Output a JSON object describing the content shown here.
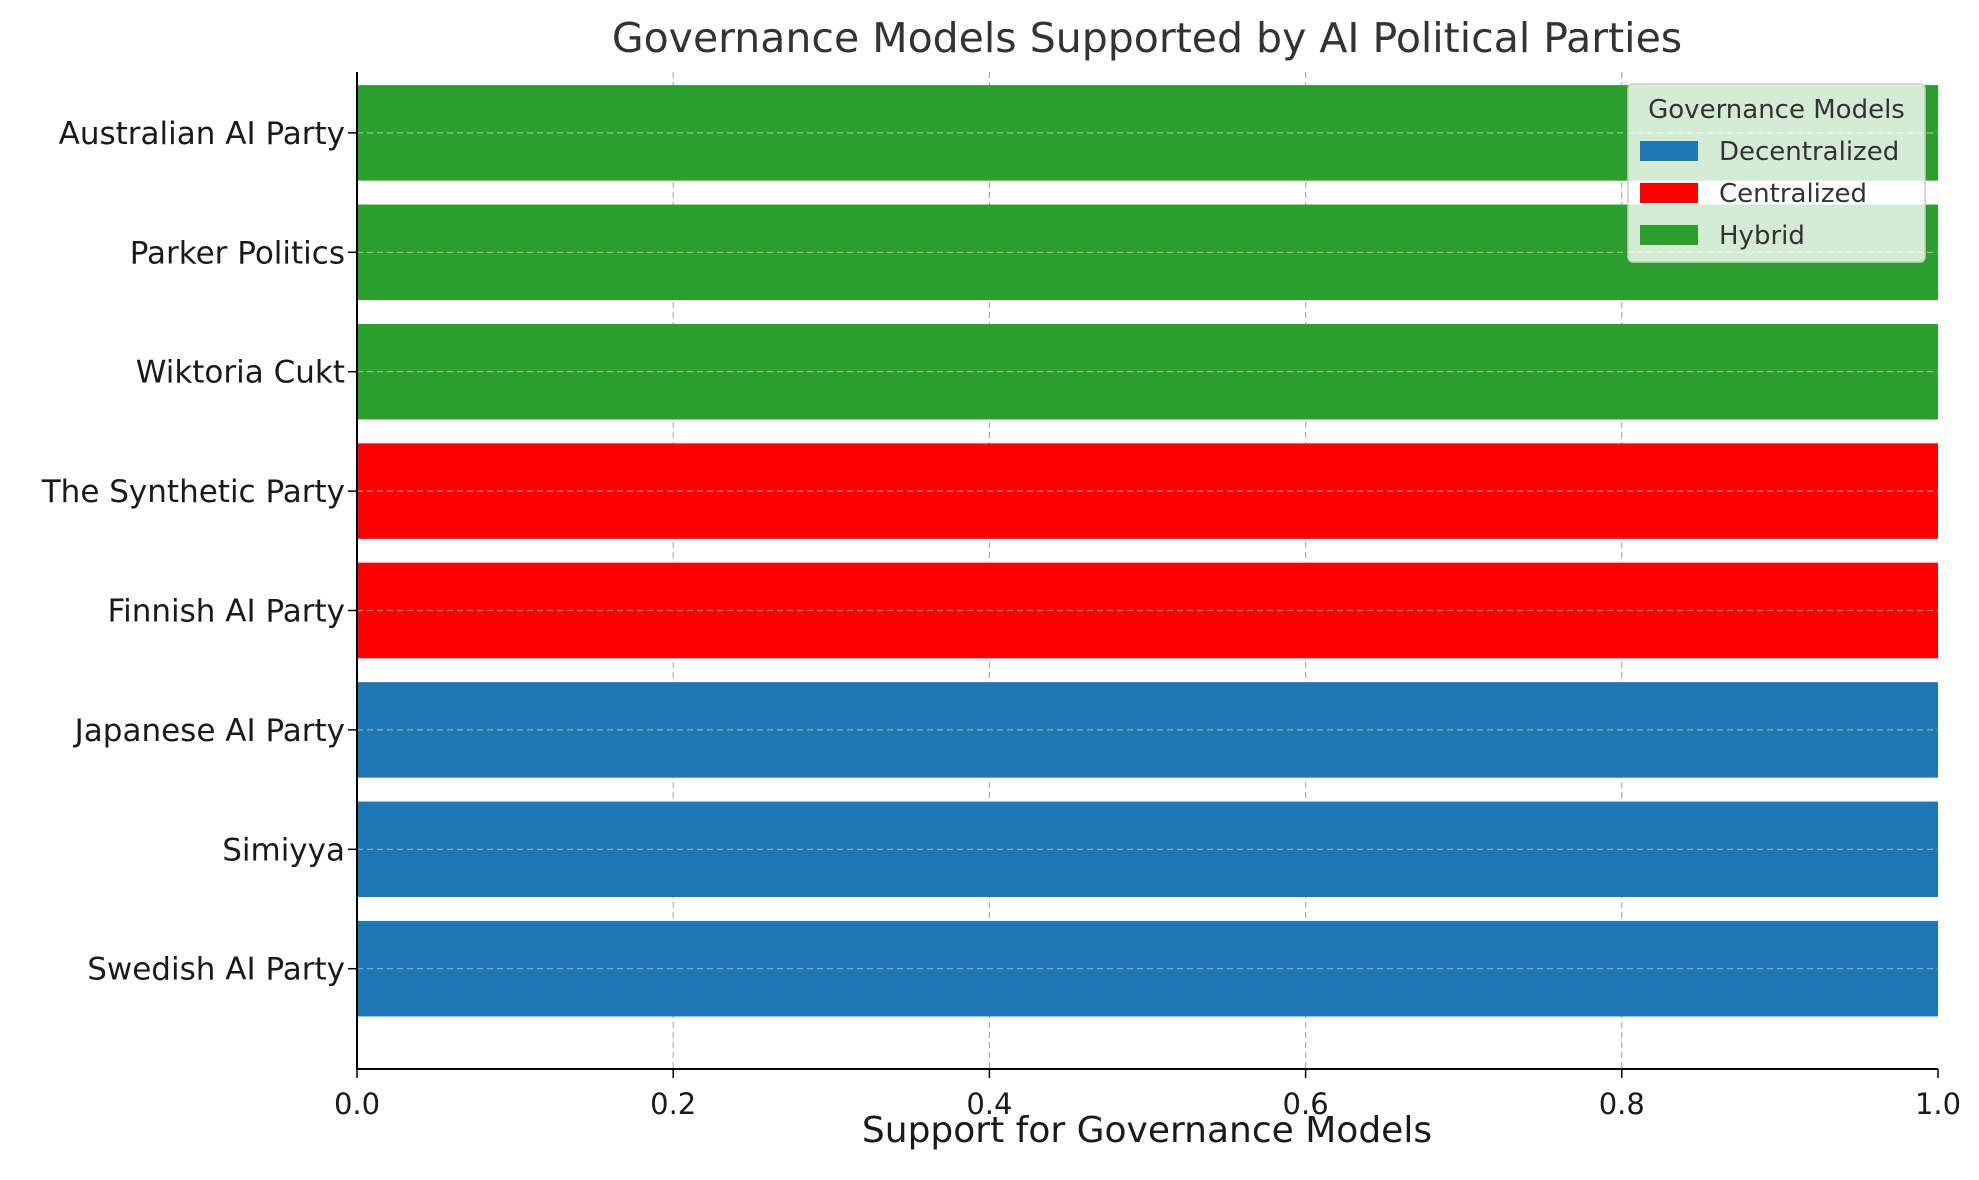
{
  "chart_data": {
    "type": "bar",
    "orientation": "horizontal",
    "title": "Governance Models Supported by AI Political Parties",
    "xlabel": "Support for Governance Models",
    "ylabel": "",
    "xlim": [
      0,
      1.0
    ],
    "x_ticks": [
      "0.0",
      "0.2",
      "0.4",
      "0.6",
      "0.8",
      "1.0"
    ],
    "grid": true,
    "categories": [
      "Swedish AI Party",
      "Simiyya",
      "Japanese AI Party",
      "Finnish AI Party",
      "The Synthetic Party",
      "Wiktoria Cukt",
      "Parker Politics",
      "Australian AI Party"
    ],
    "values": [
      1,
      1,
      1,
      1,
      1,
      1,
      1,
      1
    ],
    "bar_model": [
      "Decentralized",
      "Decentralized",
      "Decentralized",
      "Centralized",
      "Centralized",
      "Hybrid",
      "Hybrid",
      "Hybrid"
    ],
    "legend": {
      "title": "Governance Models",
      "placement": "top-right",
      "entries": [
        {
          "name": "Decentralized",
          "color": "#1f77b4"
        },
        {
          "name": "Centralized",
          "color": "#ff0000"
        },
        {
          "name": "Hybrid",
          "color": "#2ca02c"
        }
      ]
    }
  }
}
